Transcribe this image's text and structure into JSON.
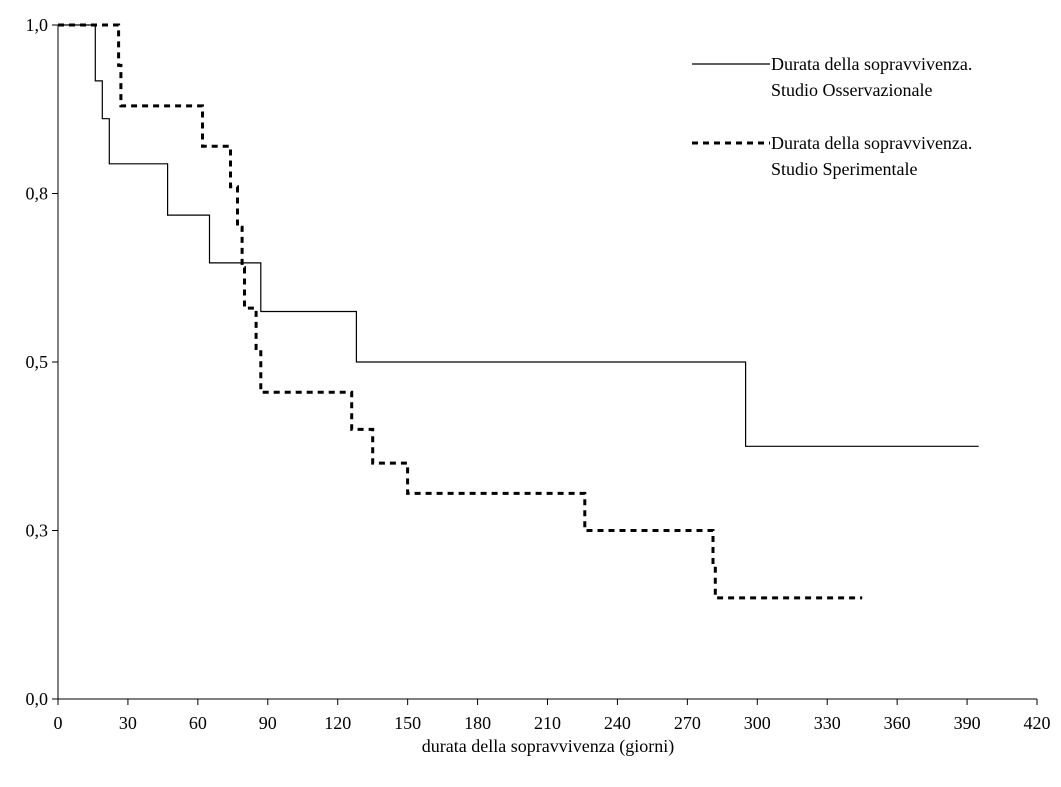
{
  "chart_data": {
    "type": "line",
    "title": "",
    "xlabel": "durata della sopravvivenza (giorni)",
    "ylabel": "",
    "xlim": [
      0,
      420
    ],
    "ylim": [
      0,
      1
    ],
    "x_ticks": [
      0,
      30,
      60,
      90,
      120,
      150,
      180,
      210,
      240,
      270,
      300,
      330,
      360,
      390,
      420
    ],
    "y_ticks": [
      0,
      0.25,
      0.5,
      0.75,
      1.0
    ],
    "y_tick_labels": [
      "0,0",
      "0,3",
      "0,5",
      "0,8",
      "1,0"
    ],
    "grid": false,
    "legend_position": "top-right",
    "series": [
      {
        "name": "Durata della sopravvivenza. Studio Osservazionale",
        "legend_lines": [
          "Durata della sopravvivenza.",
          "Studio Osservazionale"
        ],
        "style": "solid",
        "color": "#000000",
        "steps": [
          {
            "x": 0,
            "y": 1.0
          },
          {
            "x": 16,
            "y": 0.917
          },
          {
            "x": 19,
            "y": 0.861
          },
          {
            "x": 22,
            "y": 0.794
          },
          {
            "x": 47,
            "y": 0.718
          },
          {
            "x": 65,
            "y": 0.647
          },
          {
            "x": 87,
            "y": 0.575
          },
          {
            "x": 128,
            "y": 0.5
          },
          {
            "x": 295,
            "y": 0.375
          },
          {
            "x": 395,
            "y": 0.375
          }
        ]
      },
      {
        "name": "Durata della sopravvivenza. Studio Sperimentale",
        "legend_lines": [
          "Durata della sopravvivenza.",
          "Studio Sperimentale"
        ],
        "style": "dashed",
        "color": "#000000",
        "steps": [
          {
            "x": 0,
            "y": 1.0
          },
          {
            "x": 26,
            "y": 0.94
          },
          {
            "x": 27,
            "y": 0.88
          },
          {
            "x": 62,
            "y": 0.82
          },
          {
            "x": 74,
            "y": 0.76
          },
          {
            "x": 77,
            "y": 0.7
          },
          {
            "x": 79,
            "y": 0.64
          },
          {
            "x": 80,
            "y": 0.58
          },
          {
            "x": 85,
            "y": 0.52
          },
          {
            "x": 87,
            "y": 0.455
          },
          {
            "x": 126,
            "y": 0.4
          },
          {
            "x": 135,
            "y": 0.35
          },
          {
            "x": 150,
            "y": 0.305
          },
          {
            "x": 226,
            "y": 0.25
          },
          {
            "x": 281,
            "y": 0.2
          },
          {
            "x": 282,
            "y": 0.15
          },
          {
            "x": 345,
            "y": 0.15
          }
        ]
      }
    ]
  }
}
